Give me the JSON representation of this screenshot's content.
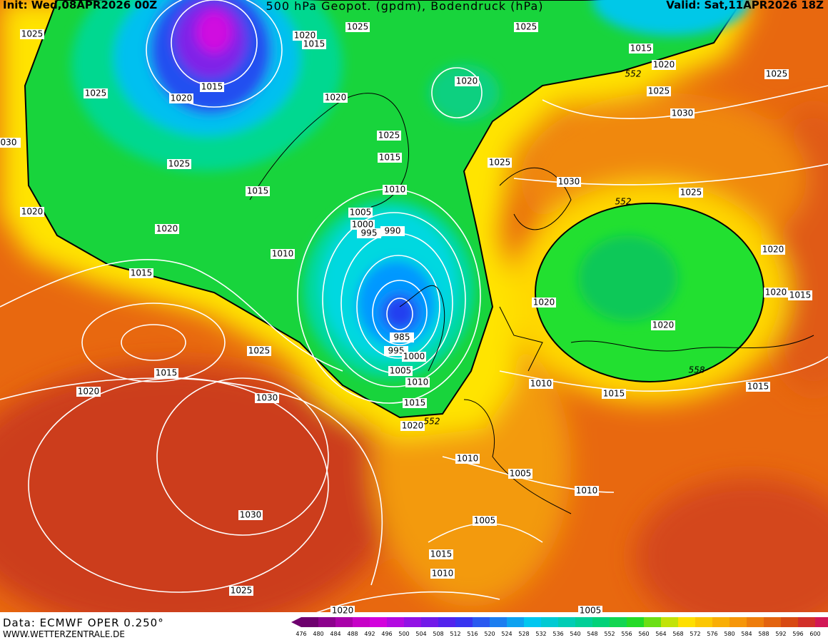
{
  "header": {
    "init": "Init: Wed,08APR2026 00Z",
    "title": "500 hPa Geopot. (gpdm), Bodendruck (hPa)",
    "valid": "Valid: Sat,11APR2026 18Z"
  },
  "footer": {
    "source": "Data: ECMWF OPER 0.250°",
    "site": "WWW.WETTERZENTRALE.DE"
  },
  "colorbar": {
    "labels": [
      476,
      480,
      484,
      488,
      492,
      496,
      500,
      504,
      508,
      512,
      516,
      520,
      524,
      528,
      532,
      536,
      540,
      548,
      552,
      556,
      560,
      564,
      568,
      572,
      576,
      580,
      584,
      588,
      592,
      596,
      600
    ]
  },
  "map": {
    "isobar_labels": [
      1025,
      1020,
      1015,
      1025,
      1025,
      1015,
      1020,
      1025,
      1025,
      1030,
      1015,
      1020,
      1025,
      1020,
      1020,
      1025,
      1015,
      1025,
      1015,
      1010,
      1025,
      1030,
      1025,
      1020,
      1020,
      1005,
      1000,
      995,
      990,
      1010,
      1015,
      1020,
      1020,
      1015,
      1020,
      1020,
      985,
      995,
      1000,
      1005,
      1010,
      1015,
      1020,
      1025,
      1015,
      1020,
      1030,
      1010,
      1015,
      1015,
      1010,
      1005,
      1010,
      1005,
      1030,
      1015,
      1010,
      1025,
      1020,
      1005,
      "030"
    ],
    "height_labels": [
      552,
      552,
      552,
      558
    ]
  }
}
